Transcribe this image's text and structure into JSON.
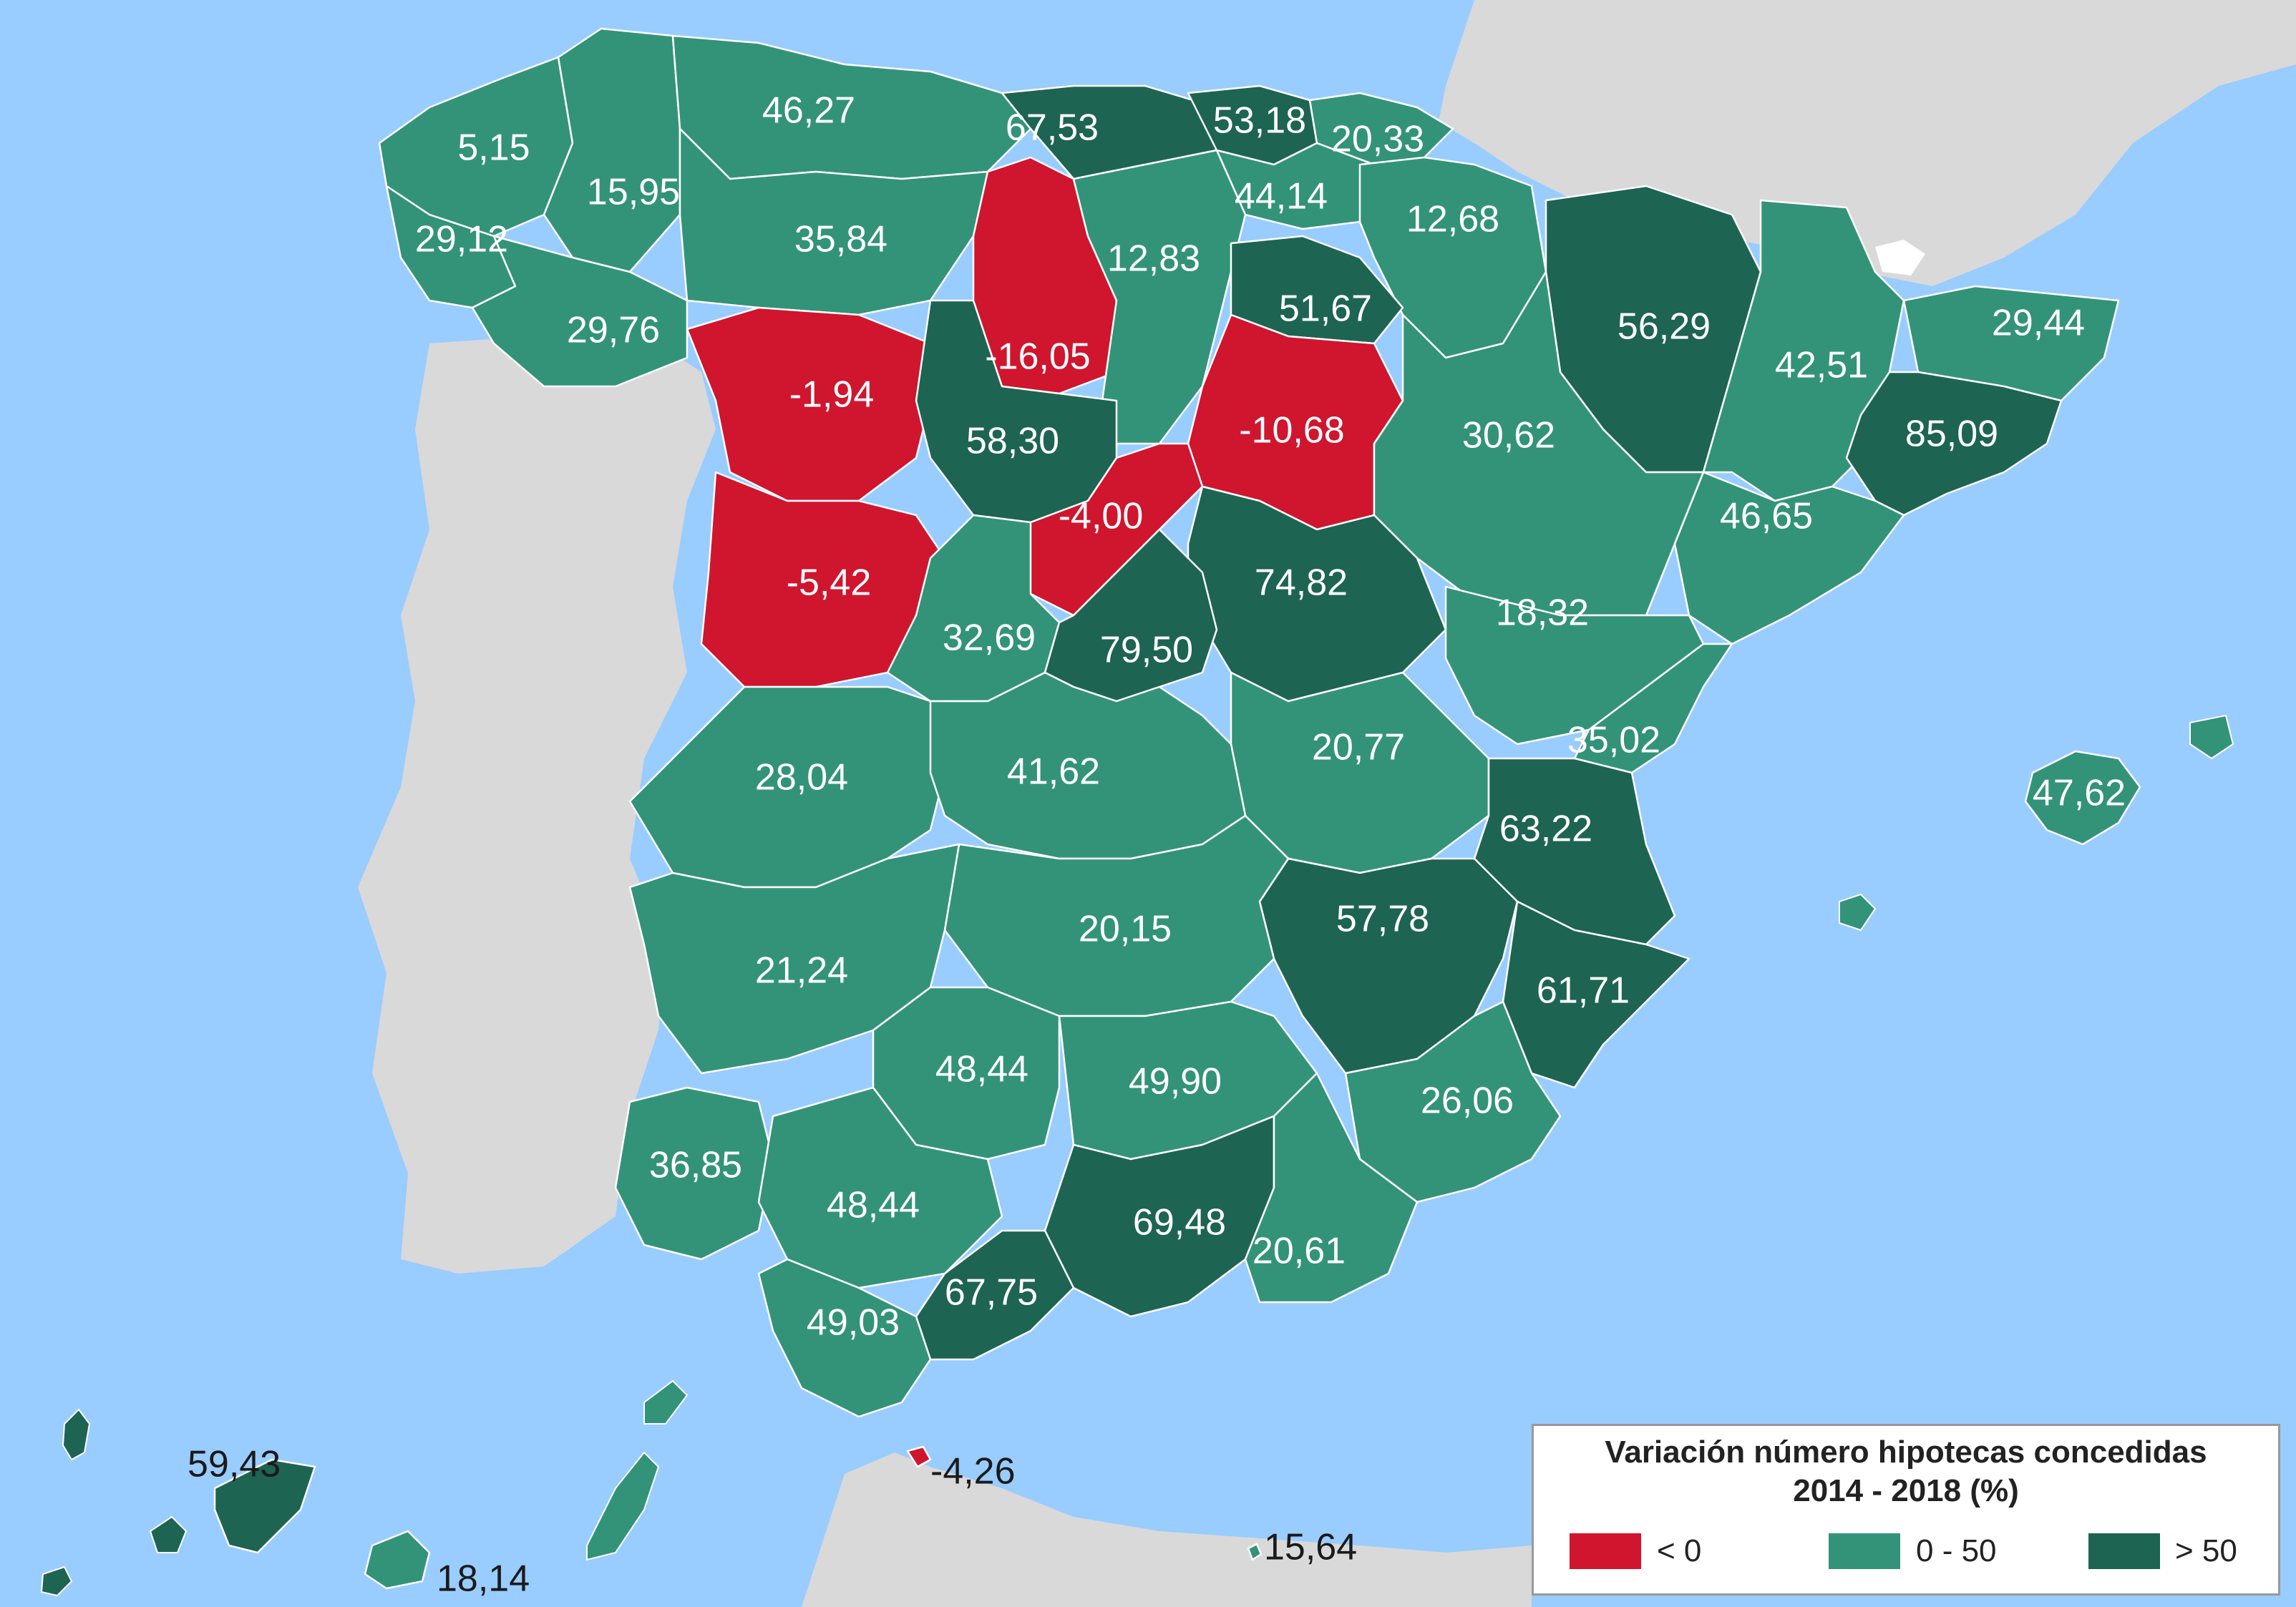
{
  "colors": {
    "sea": "#99ccff",
    "land_other": "#d9d9d9",
    "negative": "#d0152e",
    "mid": "#339378",
    "high": "#1e6452",
    "border": "#ffffff"
  },
  "legend": {
    "title_line1": "Variación número hipotecas concedidas",
    "title_line2": "2014 - 2018 (%)",
    "items": [
      {
        "label": "< 0",
        "class": "negative"
      },
      {
        "label": "0 - 50",
        "class": "mid"
      },
      {
        "label": "> 50",
        "class": "high"
      }
    ]
  },
  "provinces": [
    {
      "name": "A Coruña",
      "label": "5,15",
      "class": "mid"
    },
    {
      "name": "Lugo",
      "label": "15,95",
      "class": "mid"
    },
    {
      "name": "Asturias",
      "label": "46,27",
      "class": "mid"
    },
    {
      "name": "Cantabria",
      "label": "67,53",
      "class": "high"
    },
    {
      "name": "Bizkaia",
      "label": "53,18",
      "class": "high"
    },
    {
      "name": "Gipuzkoa",
      "label": "20,33",
      "class": "mid"
    },
    {
      "name": "Álava",
      "label": "44,14",
      "class": "mid"
    },
    {
      "name": "Navarra",
      "label": "12,68",
      "class": "mid"
    },
    {
      "name": "Pontevedra",
      "label": "29,12",
      "class": "mid"
    },
    {
      "name": "León",
      "label": "35,84",
      "class": "mid"
    },
    {
      "name": "Palencia",
      "label": "-16,05",
      "class": "negative"
    },
    {
      "name": "Burgos",
      "label": "12,83",
      "class": "mid"
    },
    {
      "name": "La Rioja",
      "label": "51,67",
      "class": "high"
    },
    {
      "name": "Huesca",
      "label": "56,29",
      "class": "high"
    },
    {
      "name": "Lleida",
      "label": "42,51",
      "class": "mid"
    },
    {
      "name": "Girona",
      "label": "29,44",
      "class": "mid"
    },
    {
      "name": "Ourense",
      "label": "29,76",
      "class": "mid"
    },
    {
      "name": "Zamora",
      "label": "-1,94",
      "class": "negative"
    },
    {
      "name": "Valladolid",
      "label": "58,30",
      "class": "high"
    },
    {
      "name": "Soria",
      "label": "-10,68",
      "class": "negative"
    },
    {
      "name": "Zaragoza",
      "label": "30,62",
      "class": "mid"
    },
    {
      "name": "Barcelona",
      "label": "85,09",
      "class": "high"
    },
    {
      "name": "Segovia",
      "label": "-4,00",
      "class": "negative"
    },
    {
      "name": "Tarragona",
      "label": "46,65",
      "class": "mid"
    },
    {
      "name": "Salamanca",
      "label": "-5,42",
      "class": "negative"
    },
    {
      "name": "Guadalajara",
      "label": "74,82",
      "class": "high"
    },
    {
      "name": "Teruel",
      "label": "18,32",
      "class": "mid"
    },
    {
      "name": "Ávila",
      "label": "32,69",
      "class": "mid"
    },
    {
      "name": "Madrid",
      "label": "79,50",
      "class": "high"
    },
    {
      "name": "Castellón",
      "label": "35,02",
      "class": "mid"
    },
    {
      "name": "Cuenca",
      "label": "20,77",
      "class": "mid"
    },
    {
      "name": "Cáceres",
      "label": "28,04",
      "class": "mid"
    },
    {
      "name": "Toledo",
      "label": "41,62",
      "class": "mid"
    },
    {
      "name": "Illes Balears",
      "label": "47,62",
      "class": "mid"
    },
    {
      "name": "Valencia",
      "label": "63,22",
      "class": "high"
    },
    {
      "name": "Albacete",
      "label": "57,78",
      "class": "high"
    },
    {
      "name": "Ciudad Real",
      "label": "20,15",
      "class": "mid"
    },
    {
      "name": "Badajoz",
      "label": "21,24",
      "class": "mid"
    },
    {
      "name": "Alicante",
      "label": "61,71",
      "class": "high"
    },
    {
      "name": "Córdoba",
      "label": "48,44",
      "class": "mid"
    },
    {
      "name": "Jaén",
      "label": "49,90",
      "class": "mid"
    },
    {
      "name": "Murcia",
      "label": "26,06",
      "class": "mid"
    },
    {
      "name": "Huelva",
      "label": "36,85",
      "class": "mid"
    },
    {
      "name": "Sevilla",
      "label": "48,44",
      "class": "mid"
    },
    {
      "name": "Granada",
      "label": "69,48",
      "class": "high"
    },
    {
      "name": "Almería",
      "label": "20,61",
      "class": "mid"
    },
    {
      "name": "Málaga",
      "label": "67,75",
      "class": "high"
    },
    {
      "name": "Cádiz",
      "label": "49,03",
      "class": "mid"
    },
    {
      "name": "Ceuta",
      "label": "-4,26",
      "class": "negative"
    },
    {
      "name": "Santa Cruz de Tenerife",
      "label": "59,43",
      "class": "high"
    },
    {
      "name": "Las Palmas",
      "label": "18,14",
      "class": "mid"
    },
    {
      "name": "Melilla",
      "label": "15,64",
      "class": "mid"
    }
  ]
}
